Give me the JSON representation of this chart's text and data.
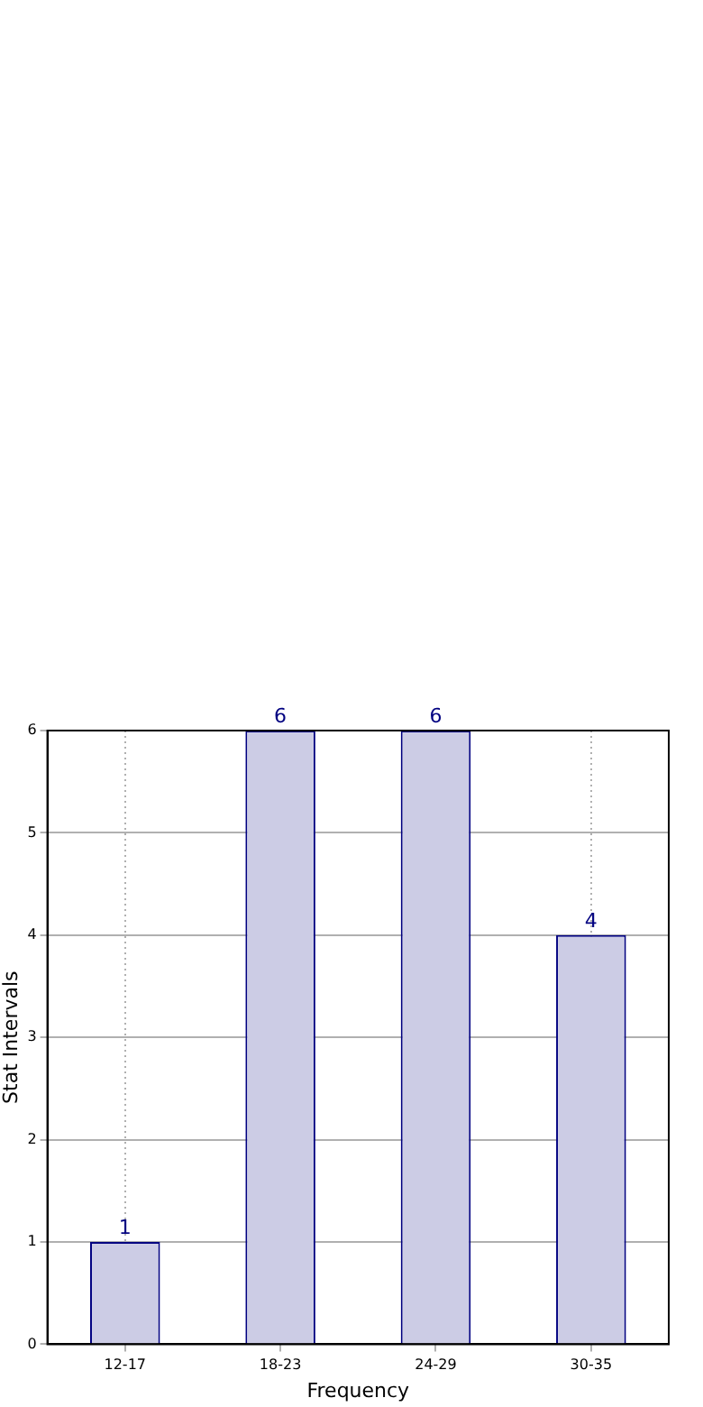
{
  "chart_data": {
    "type": "bar",
    "xlabel": "Frequency",
    "ylabel": "Stat Intervals",
    "categories": [
      "12-17",
      "18-23",
      "24-29",
      "30-35"
    ],
    "values": [
      1,
      6,
      6,
      4
    ],
    "color": "#cccce5",
    "ylim": [
      0,
      6
    ],
    "yticks": [
      0,
      1,
      2,
      3,
      4,
      5,
      6
    ],
    "grid": true,
    "data_labels": true
  }
}
